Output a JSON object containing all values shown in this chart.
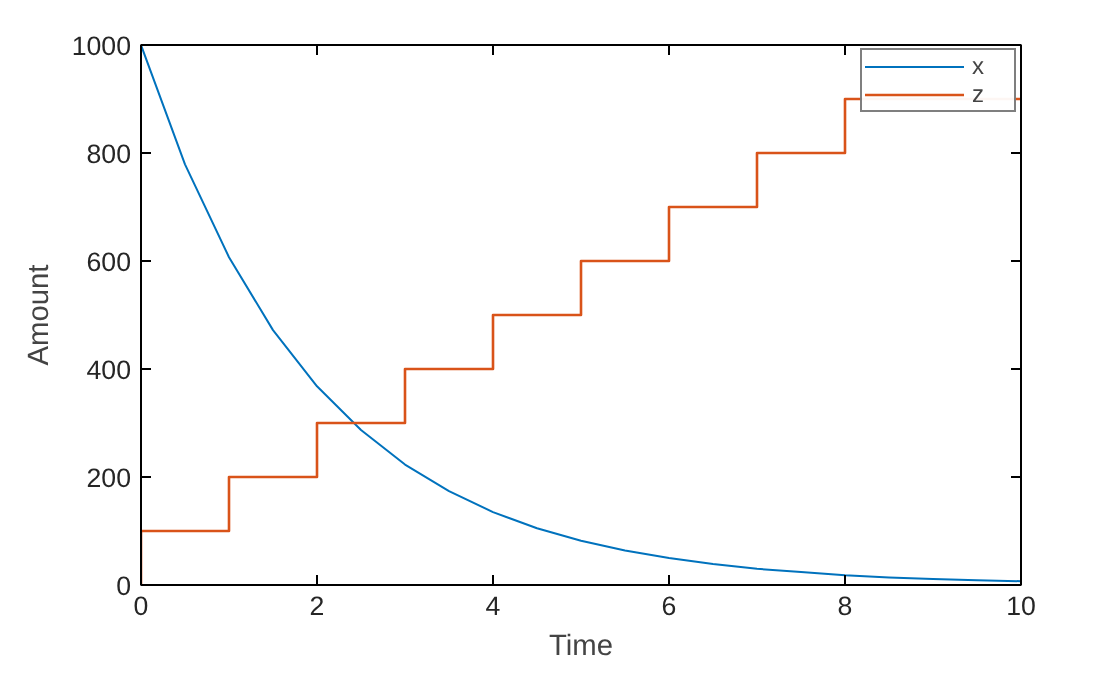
{
  "chart_data": {
    "type": "line",
    "xlabel": "Time",
    "ylabel": "Amount",
    "xlim": [
      0,
      10
    ],
    "ylim": [
      0,
      1000
    ],
    "xticks": [
      0,
      2,
      4,
      6,
      8,
      10
    ],
    "yticks": [
      0,
      200,
      400,
      600,
      800,
      1000
    ],
    "grid": false,
    "legend": "top right",
    "series": [
      {
        "name": "x",
        "color": "#0072bd",
        "x": [
          0,
          0.5,
          1,
          1.5,
          2,
          2.5,
          3,
          3.5,
          4,
          4.5,
          5,
          5.5,
          6,
          6.5,
          7,
          7.5,
          8,
          8.5,
          9,
          9.5,
          10
        ],
        "values": [
          1000,
          779,
          607,
          472,
          368,
          287,
          223,
          174,
          135,
          105,
          82,
          64,
          50,
          39,
          30,
          24,
          18,
          14,
          11,
          9,
          7
        ]
      },
      {
        "name": "z",
        "color": "#d95319",
        "type": "step",
        "x": [
          0,
          0,
          1,
          2,
          3,
          4,
          5,
          6,
          7,
          8,
          10
        ],
        "values": [
          0,
          100,
          200,
          300,
          400,
          500,
          600,
          700,
          800,
          900,
          900
        ]
      }
    ]
  }
}
